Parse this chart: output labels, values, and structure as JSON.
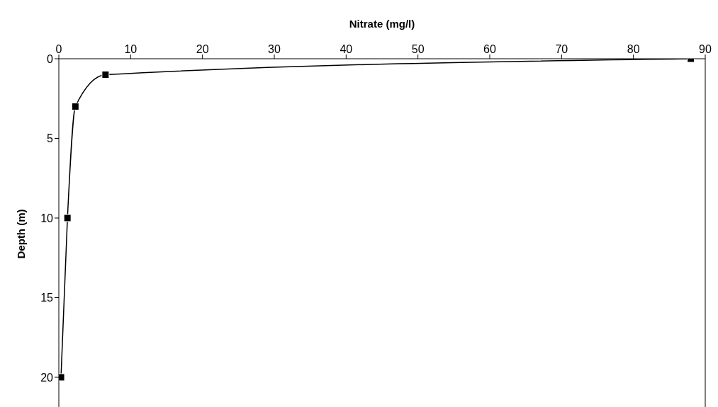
{
  "chart_data": {
    "type": "line",
    "xlabel": "Nitrate (mg/l)",
    "ylabel": "Depth (m)",
    "x": [
      88,
      6.5,
      2.3,
      1.2,
      0.3
    ],
    "series": [
      {
        "color": "#000000",
        "values": [
          0,
          1,
          3,
          10,
          20
        ]
      }
    ],
    "xlim": [
      0,
      90
    ],
    "xticks": [
      0,
      10,
      20,
      30,
      40,
      50,
      60,
      70,
      80,
      90
    ],
    "ylim": [
      22,
      0
    ],
    "yticks": [
      0,
      5,
      10,
      15,
      20
    ],
    "marker": "square",
    "line_style": "solid",
    "grid": false,
    "legend": false
  }
}
